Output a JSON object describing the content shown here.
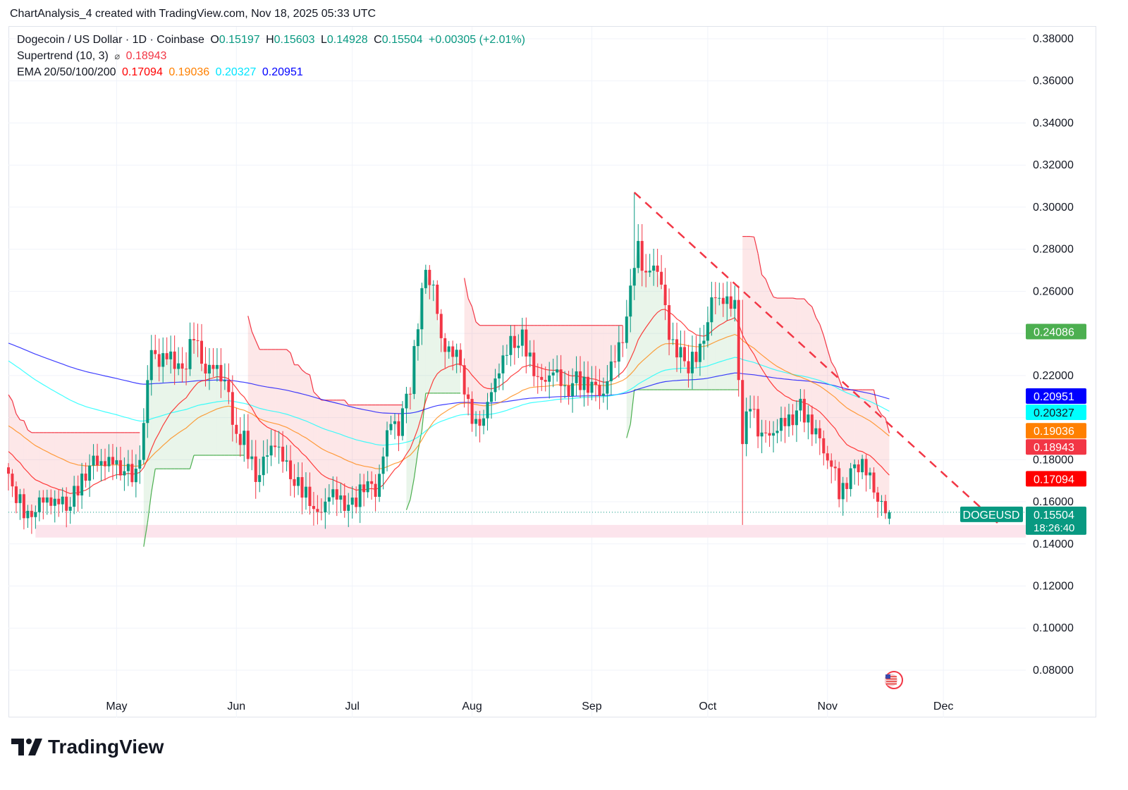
{
  "top_note": "ChartAnalysis_4 created with TradingView.com, Nov 18, 2025 05:33 UTC",
  "legend": {
    "symbol": "Dogecoin / US Dollar · 1D · Coinbase",
    "o_label": "O",
    "o": "0.15197",
    "h_label": "H",
    "h": "0.15603",
    "l_label": "L",
    "l": "0.14928",
    "c_label": "C",
    "c": "0.15504",
    "change": "+0.00305 (+2.01%)",
    "supertrend_name": "Supertrend (10, 3)",
    "supertrend_icon": "⌀",
    "supertrend_value": "0.18943",
    "ema_name": "EMA 20/50/100/200",
    "ema20": "0.17094",
    "ema50": "0.19036",
    "ema100": "0.20327",
    "ema200": "0.20951"
  },
  "brand": "TradingView",
  "colors": {
    "up": "#089981",
    "down": "#f23645",
    "ema20": "#ff0000",
    "ema50": "#ff8000",
    "ema100": "#00ffff",
    "ema200": "#0000ff",
    "st_up": "#4caf50",
    "st_down": "#f23645",
    "label_green": "#4caf50",
    "price": "#089981"
  },
  "chart_data": {
    "type": "candlestick",
    "title": "Dogecoin / US Dollar · 1D · Coinbase",
    "start_date": "2025-04-03",
    "end_date": "2025-11-17",
    "ylim": [
      0.07,
      0.39
    ],
    "y_ticks": [
      "0.38000",
      "0.36000",
      "0.34000",
      "0.32000",
      "0.30000",
      "0.28000",
      "0.26000",
      "0.22000",
      "0.18000",
      "0.16000",
      "0.14000",
      "0.12000",
      "0.10000",
      "0.08000"
    ],
    "x_ticks": [
      {
        "label": "May",
        "date": "2025-05-01"
      },
      {
        "label": "Jun",
        "date": "2025-06-01"
      },
      {
        "label": "Jul",
        "date": "2025-07-01"
      },
      {
        "label": "Aug",
        "date": "2025-08-01"
      },
      {
        "label": "Sep",
        "date": "2025-09-01"
      },
      {
        "label": "Oct",
        "date": "2025-10-01"
      },
      {
        "label": "Nov",
        "date": "2025-11-01"
      },
      {
        "label": "Dec",
        "date": "2025-12-01"
      }
    ],
    "close_anchors": [
      [
        "2025-04-03",
        0.17
      ],
      [
        "2025-04-06",
        0.16
      ],
      [
        "2025-04-08",
        0.152
      ],
      [
        "2025-04-10",
        0.158
      ],
      [
        "2025-04-14",
        0.162
      ],
      [
        "2025-04-18",
        0.158
      ],
      [
        "2025-04-22",
        0.17
      ],
      [
        "2025-04-24",
        0.178
      ],
      [
        "2025-04-28",
        0.18
      ],
      [
        "2025-05-02",
        0.176
      ],
      [
        "2025-05-06",
        0.172
      ],
      [
        "2025-05-08",
        0.195
      ],
      [
        "2025-05-10",
        0.235
      ],
      [
        "2025-05-12",
        0.225
      ],
      [
        "2025-05-15",
        0.23
      ],
      [
        "2025-05-18",
        0.22
      ],
      [
        "2025-05-21",
        0.24
      ],
      [
        "2025-05-23",
        0.225
      ],
      [
        "2025-05-27",
        0.222
      ],
      [
        "2025-05-30",
        0.215
      ],
      [
        "2025-05-31",
        0.193
      ],
      [
        "2025-06-03",
        0.19
      ],
      [
        "2025-06-06",
        0.172
      ],
      [
        "2025-06-09",
        0.182
      ],
      [
        "2025-06-11",
        0.19
      ],
      [
        "2025-06-14",
        0.176
      ],
      [
        "2025-06-17",
        0.168
      ],
      [
        "2025-06-20",
        0.162
      ],
      [
        "2025-06-22",
        0.152
      ],
      [
        "2025-06-25",
        0.165
      ],
      [
        "2025-06-28",
        0.16
      ],
      [
        "2025-07-01",
        0.158
      ],
      [
        "2025-07-04",
        0.168
      ],
      [
        "2025-07-07",
        0.165
      ],
      [
        "2025-07-09",
        0.182
      ],
      [
        "2025-07-11",
        0.198
      ],
      [
        "2025-07-13",
        0.195
      ],
      [
        "2025-07-16",
        0.215
      ],
      [
        "2025-07-18",
        0.245
      ],
      [
        "2025-07-20",
        0.27
      ],
      [
        "2025-07-22",
        0.262
      ],
      [
        "2025-07-24",
        0.235
      ],
      [
        "2025-07-27",
        0.232
      ],
      [
        "2025-07-29",
        0.225
      ],
      [
        "2025-07-31",
        0.205
      ],
      [
        "2025-08-02",
        0.196
      ],
      [
        "2025-08-05",
        0.205
      ],
      [
        "2025-08-08",
        0.225
      ],
      [
        "2025-08-11",
        0.235
      ],
      [
        "2025-08-14",
        0.238
      ],
      [
        "2025-08-16",
        0.228
      ],
      [
        "2025-08-19",
        0.215
      ],
      [
        "2025-08-22",
        0.224
      ],
      [
        "2025-08-25",
        0.212
      ],
      [
        "2025-08-28",
        0.218
      ],
      [
        "2025-09-01",
        0.214
      ],
      [
        "2025-09-04",
        0.212
      ],
      [
        "2025-09-07",
        0.228
      ],
      [
        "2025-09-10",
        0.245
      ],
      [
        "2025-09-12",
        0.275
      ],
      [
        "2025-09-13",
        0.28
      ],
      [
        "2025-09-15",
        0.265
      ],
      [
        "2025-09-17",
        0.275
      ],
      [
        "2025-09-19",
        0.262
      ],
      [
        "2025-09-21",
        0.24
      ],
      [
        "2025-09-23",
        0.232
      ],
      [
        "2025-09-26",
        0.225
      ],
      [
        "2025-09-29",
        0.232
      ],
      [
        "2025-10-02",
        0.255
      ],
      [
        "2025-10-05",
        0.258
      ],
      [
        "2025-10-08",
        0.252
      ],
      [
        "2025-10-10",
        0.19
      ],
      [
        "2025-10-12",
        0.208
      ],
      [
        "2025-10-14",
        0.195
      ],
      [
        "2025-10-16",
        0.19
      ],
      [
        "2025-10-19",
        0.196
      ],
      [
        "2025-10-22",
        0.198
      ],
      [
        "2025-10-25",
        0.205
      ],
      [
        "2025-10-28",
        0.195
      ],
      [
        "2025-10-31",
        0.185
      ],
      [
        "2025-11-03",
        0.172
      ],
      [
        "2025-11-04",
        0.163
      ],
      [
        "2025-11-06",
        0.17
      ],
      [
        "2025-11-09",
        0.178
      ],
      [
        "2025-11-11",
        0.175
      ],
      [
        "2025-11-13",
        0.165
      ],
      [
        "2025-11-15",
        0.16
      ],
      [
        "2025-11-16",
        0.153
      ],
      [
        "2025-11-17",
        0.155
      ]
    ],
    "overrides": [
      {
        "date": "2025-10-10",
        "high": 0.256,
        "low": 0.149
      },
      {
        "date": "2025-09-12",
        "high": 0.307
      },
      {
        "date": "2025-11-17",
        "open": 0.15197,
        "high": 0.15603,
        "low": 0.14928,
        "close": 0.15504
      }
    ],
    "ema_seeds": {
      "ema20": 0.185,
      "ema50": 0.197,
      "ema100": 0.228,
      "ema200": 0.236
    },
    "supertrend": {
      "period": 10,
      "multiplier": 3
    },
    "trendline": {
      "from": [
        "2025-09-12",
        0.307
      ],
      "to": [
        "2025-12-15",
        0.15
      ]
    },
    "support_zone": {
      "from_date": "2025-04-10",
      "low": 0.143,
      "high": 0.149
    },
    "axis_labels": [
      {
        "text": "0.24086",
        "price": 0.24086,
        "bg": "#4caf50",
        "fg": "#ffffff"
      },
      {
        "text": "0.20951",
        "price": 0.20951,
        "bg": "#0000ff",
        "fg": "#ffffff"
      },
      {
        "text": "0.20327",
        "price": 0.20327,
        "bg": "#00ffff",
        "fg": "#131722"
      },
      {
        "text": "0.19036",
        "price": 0.19036,
        "bg": "#ff8000",
        "fg": "#ffffff"
      },
      {
        "text": "0.18943",
        "price": 0.18943,
        "bg": "#f23645",
        "fg": "#ffffff"
      },
      {
        "text": "0.17094",
        "price": 0.17094,
        "bg": "#ff0000",
        "fg": "#ffffff"
      }
    ],
    "last_price": {
      "symbol": "DOGEUSD",
      "price": 0.15504,
      "text": "0.15504",
      "countdown": "18:26:40"
    }
  }
}
